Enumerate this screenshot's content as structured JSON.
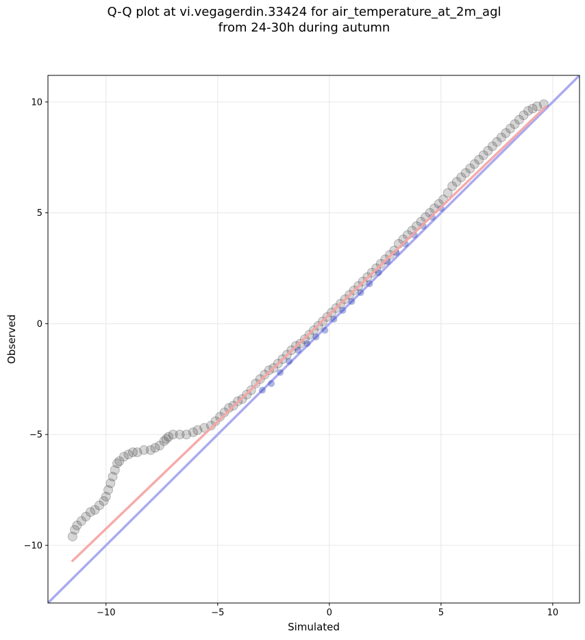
{
  "title": {
    "line1": "Q-Q plot at vi.vegagerdin.33424 for air_temperature_at_2m_agl",
    "line2": "from 24-30h during autumn"
  },
  "chart_data": {
    "type": "scatter",
    "title": "Q-Q plot at vi.vegagerdin.33424 for air_temperature_at_2m_agl\nfrom 24-30h during autumn",
    "xlabel": "Simulated",
    "ylabel": "Observed",
    "xlim": [
      -12.6,
      11.2
    ],
    "ylim": [
      -12.6,
      11.2
    ],
    "xticks": [
      -10,
      -5,
      0,
      5,
      10
    ],
    "yticks": [
      -10,
      -5,
      0,
      5,
      10
    ],
    "xtick_labels": [
      "−10",
      "−5",
      "0",
      "5",
      "10"
    ],
    "ytick_labels": [
      "−10",
      "−5",
      "0",
      "5",
      "10"
    ],
    "grid": true,
    "series": [
      {
        "kind": "quantile-points",
        "color": "#333333",
        "x": [
          -11.5,
          -11.4,
          -11.3,
          -11.1,
          -10.9,
          -10.7,
          -10.5,
          -10.3,
          -10.1,
          -10.0,
          -9.9,
          -9.8,
          -9.7,
          -9.6,
          -9.5,
          -9.4,
          -9.2,
          -9.0,
          -8.8,
          -8.6,
          -8.3,
          -8.0,
          -7.8,
          -7.6,
          -7.4,
          -7.3,
          -7.2,
          -7.0,
          -6.7,
          -6.4,
          -6.1,
          -5.9,
          -5.6,
          -5.3,
          -5.1,
          -4.9,
          -4.7,
          -4.5,
          -4.3,
          -4.1,
          -3.9,
          -3.7,
          -3.5,
          -3.3,
          -3.1,
          -2.9,
          -2.7,
          -2.5,
          -2.3,
          -2.1,
          -1.9,
          -1.7,
          -1.5,
          -1.3,
          -1.1,
          -0.9,
          -0.7,
          -0.5,
          -0.3,
          -0.1,
          0.1,
          0.3,
          0.5,
          0.7,
          0.9,
          1.1,
          1.3,
          1.5,
          1.7,
          1.9,
          2.1,
          2.3,
          2.5,
          2.7,
          2.9,
          3.1,
          3.3,
          3.5,
          3.7,
          3.9,
          4.1,
          4.3,
          4.5,
          4.7,
          4.9,
          5.1,
          5.3,
          5.5,
          5.7,
          5.9,
          6.1,
          6.3,
          6.5,
          6.7,
          6.9,
          7.1,
          7.3,
          7.5,
          7.7,
          7.9,
          8.1,
          8.3,
          8.5,
          8.7,
          8.9,
          9.1,
          9.3,
          9.6
        ],
        "y": [
          -9.6,
          -9.3,
          -9.1,
          -8.9,
          -8.7,
          -8.5,
          -8.4,
          -8.2,
          -8.0,
          -7.8,
          -7.5,
          -7.2,
          -6.9,
          -6.6,
          -6.3,
          -6.2,
          -6.0,
          -5.9,
          -5.8,
          -5.8,
          -5.7,
          -5.7,
          -5.6,
          -5.5,
          -5.3,
          -5.2,
          -5.1,
          -5.0,
          -5.0,
          -5.0,
          -4.9,
          -4.8,
          -4.7,
          -4.6,
          -4.4,
          -4.2,
          -4.0,
          -3.8,
          -3.7,
          -3.5,
          -3.4,
          -3.2,
          -3.0,
          -2.7,
          -2.5,
          -2.3,
          -2.1,
          -2.0,
          -1.8,
          -1.6,
          -1.4,
          -1.2,
          -1.0,
          -0.9,
          -0.7,
          -0.5,
          -0.3,
          -0.1,
          0.1,
          0.3,
          0.5,
          0.7,
          0.9,
          1.1,
          1.3,
          1.5,
          1.7,
          1.9,
          2.1,
          2.3,
          2.5,
          2.7,
          2.9,
          3.1,
          3.3,
          3.6,
          3.8,
          4.0,
          4.2,
          4.4,
          4.6,
          4.8,
          5.0,
          5.2,
          5.4,
          5.6,
          5.9,
          6.2,
          6.4,
          6.6,
          6.8,
          7.0,
          7.2,
          7.4,
          7.6,
          7.8,
          8.0,
          8.2,
          8.4,
          8.6,
          8.8,
          9.0,
          9.2,
          9.4,
          9.6,
          9.7,
          9.8,
          9.9
        ]
      },
      {
        "kind": "highlight-points",
        "color": "#1a2fa8",
        "x": [
          -3.0,
          -2.6,
          -2.2,
          -1.8,
          -1.4,
          -1.0,
          -0.6,
          -0.2,
          0.2,
          0.6,
          1.0,
          1.4,
          1.8,
          2.2,
          2.6,
          3.0,
          3.4,
          3.8,
          4.2,
          4.6,
          5.0
        ],
        "y": [
          -3.0,
          -2.7,
          -2.2,
          -1.7,
          -1.2,
          -0.9,
          -0.6,
          -0.3,
          0.2,
          0.6,
          1.0,
          1.4,
          1.8,
          2.3,
          2.8,
          3.2,
          3.6,
          4.0,
          4.4,
          4.8,
          5.2
        ]
      },
      {
        "kind": "fit-line",
        "color": "#f4a6a6",
        "x": [
          -11.5,
          9.7
        ],
        "y": [
          -10.7,
          9.8
        ]
      },
      {
        "kind": "identity-line",
        "color": "#aaaaf0",
        "x": [
          -12.6,
          11.2
        ],
        "y": [
          -12.6,
          11.2
        ]
      }
    ]
  }
}
